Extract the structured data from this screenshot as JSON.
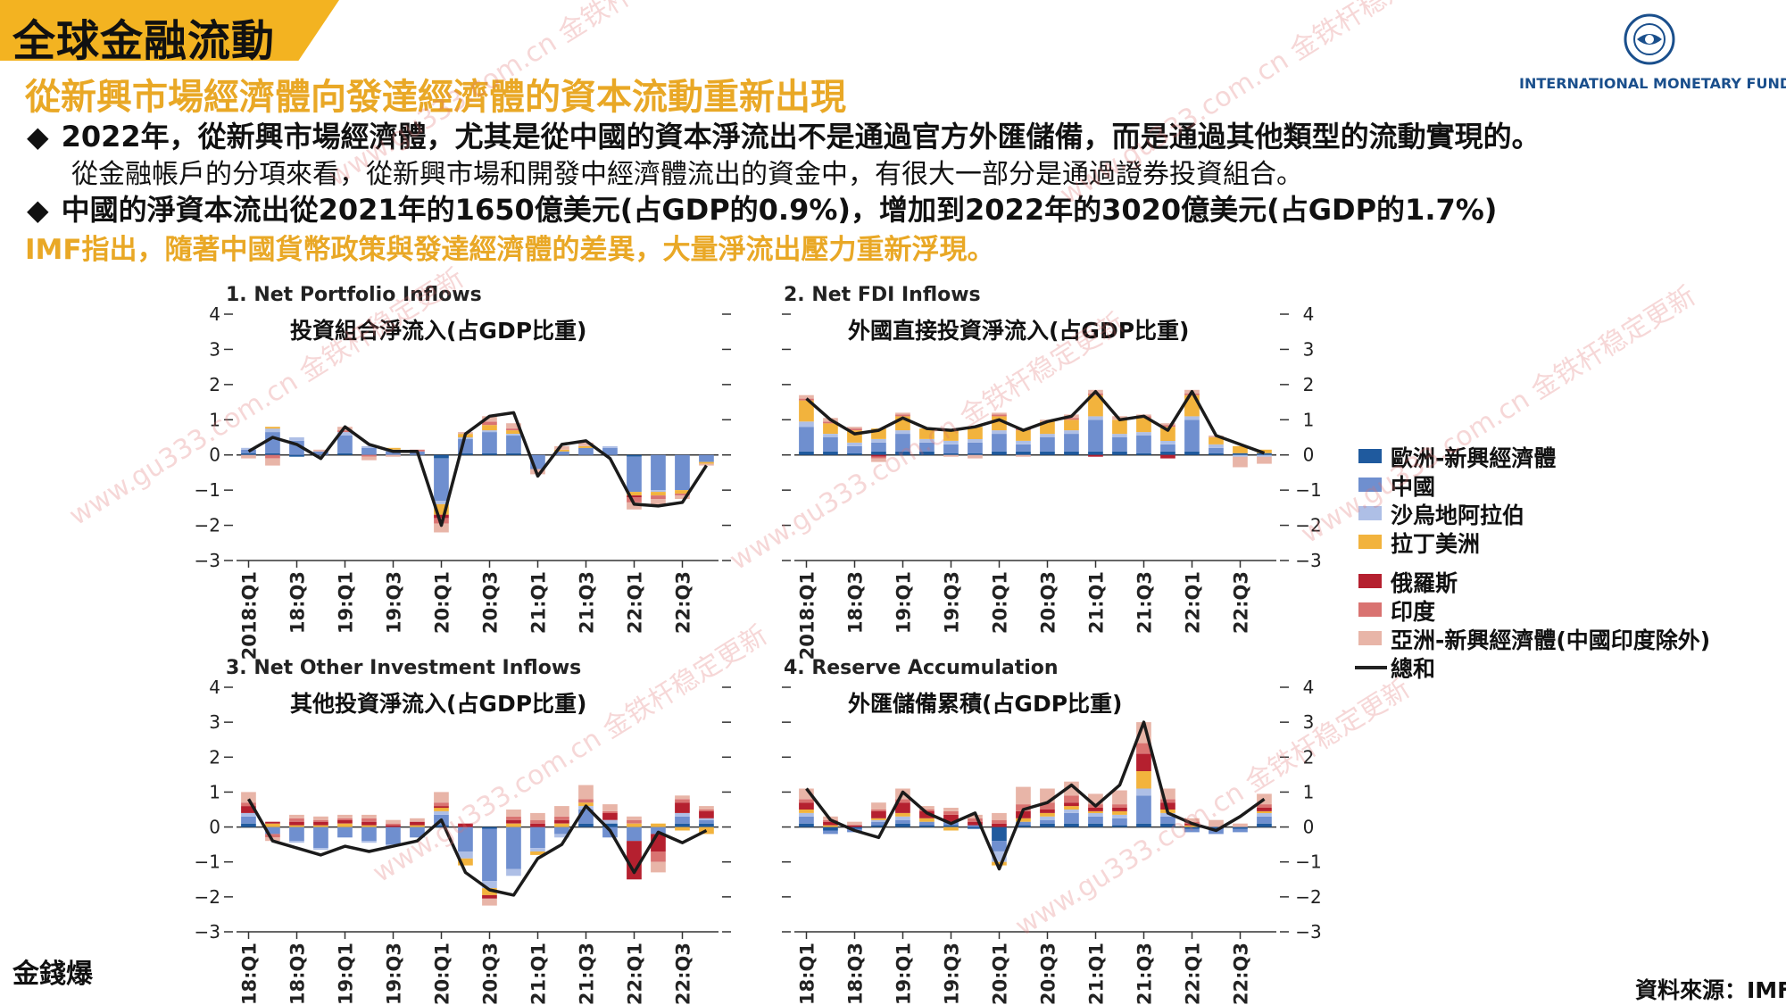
{
  "header": {
    "title": "全球金融流動",
    "subtitle": "從新興市場經濟體向發達經濟體的資本流動重新出現",
    "imf_name": "INTERNATIONAL MONETARY FUND"
  },
  "bullets": {
    "b1": "2022年，從新興市場經濟體，尤其是從中國的資本淨流出不是通過官方外匯儲備，而是通過其他類型的流動實現的。",
    "b1_sub": "從金融帳戶的分項來看，從新興市場和開發中經濟體流出的資金中，有很大一部分是通過證券投資組合。",
    "b2": "中國的淨資本流出從2021年的1650億美元(占GDP的0.9%)，增加到2022年的3020億美元(占GDP的1.7%)",
    "b3": "IMF指出，隨著中國貨幣政策與發達經濟體的差異，大量淨流出壓力重新浮現。",
    "marker": "◆"
  },
  "source": "資料來源：IMF",
  "corner_logo": "金錢爆",
  "watermark_text": "www.gu333.com.cn 金铁杆稳定更新",
  "legend": {
    "items": [
      {
        "label": "歐洲-新興經濟體",
        "color": "#1f5a9e"
      },
      {
        "label": "中國",
        "color": "#6f8fcf"
      },
      {
        "label": "沙烏地阿拉伯",
        "color": "#aebfe6"
      },
      {
        "label": "拉丁美洲",
        "color": "#f2b33d"
      },
      {
        "label": "俄羅斯",
        "color": "#b5202f"
      },
      {
        "label": "印度",
        "color": "#d97371"
      },
      {
        "label": "亞洲-新興經濟體(中國印度除外)",
        "color": "#e8b5a8"
      }
    ],
    "total_label": "總和"
  },
  "chart_data": [
    {
      "type": "bar",
      "stacked": true,
      "title": "1. Net Portfolio Inflows",
      "subtitle_zh": "投資組合淨流入(占GDP比重)",
      "ylim": [
        -3,
        4
      ],
      "yticks": [
        "4",
        "3",
        "2",
        "1",
        "0",
        "−1",
        "−2",
        "−3"
      ],
      "tick_labels": [
        "2018:Q1",
        "18:Q3",
        "19:Q1",
        "19:Q3",
        "20:Q1",
        "20:Q3",
        "21:Q1",
        "21:Q3",
        "22:Q1",
        "22:Q3"
      ],
      "categories": [
        "2018Q1",
        "2018Q2",
        "2018Q3",
        "2018Q4",
        "2019Q1",
        "2019Q2",
        "2019Q3",
        "2019Q4",
        "2020Q1",
        "2020Q2",
        "2020Q3",
        "2020Q4",
        "2021Q1",
        "2021Q2",
        "2021Q3",
        "2021Q4",
        "2022Q1",
        "2022Q2",
        "2022Q3",
        "2022Q4"
      ],
      "series": [
        {
          "name": "歐洲-新興經濟體",
          "values": [
            0.05,
            0.05,
            -0.05,
            0,
            0.05,
            0,
            0,
            0,
            -0.1,
            0.05,
            0.05,
            0.05,
            0,
            0,
            0,
            0,
            -0.05,
            0,
            0,
            0
          ]
        },
        {
          "name": "中國",
          "values": [
            0.1,
            0.6,
            0.4,
            0.1,
            0.5,
            0.2,
            0.1,
            0.1,
            -1.2,
            0.4,
            0.6,
            0.5,
            -0.4,
            0.1,
            0.2,
            0.2,
            -1,
            -1,
            -1,
            -0.2
          ]
        },
        {
          "name": "沙烏地阿拉伯",
          "values": [
            0.05,
            0.1,
            0.1,
            0,
            0.1,
            0.05,
            0.05,
            0,
            -0.1,
            0.05,
            0.05,
            0.05,
            0,
            0,
            0,
            0.05,
            0,
            -0.05,
            0,
            0
          ]
        },
        {
          "name": "拉丁美洲",
          "values": [
            0,
            0.05,
            0,
            0,
            0,
            0,
            0.05,
            0,
            -0.3,
            0.1,
            0.15,
            0.1,
            0,
            0.05,
            0.05,
            0,
            -0.1,
            -0.1,
            -0.1,
            -0.05
          ]
        },
        {
          "name": "俄羅斯",
          "values": [
            0,
            0,
            0,
            0,
            0,
            0,
            0,
            0,
            -0.1,
            0,
            0,
            0,
            0,
            0,
            0,
            0,
            -0.05,
            0,
            0,
            0
          ]
        },
        {
          "name": "印度",
          "values": [
            0,
            -0.1,
            0,
            0,
            0.05,
            -0.05,
            0,
            0.05,
            -0.15,
            0,
            0.1,
            0.05,
            0,
            0,
            0,
            0,
            -0.15,
            -0.1,
            -0.05,
            0
          ]
        },
        {
          "name": "亞洲-新興經濟體(中國印度除外)",
          "values": [
            -0.1,
            -0.2,
            0,
            0.05,
            0.1,
            -0.1,
            -0.05,
            0,
            -0.25,
            0.05,
            0.15,
            0.15,
            -0.15,
            0.1,
            0.1,
            0,
            -0.2,
            -0.2,
            -0.1,
            -0.05
          ]
        }
      ],
      "total": [
        0.1,
        0.5,
        0.3,
        -0.1,
        0.8,
        0.3,
        0.1,
        0.1,
        -2,
        0.6,
        1.1,
        1.2,
        -0.6,
        0.3,
        0.4,
        -0.1,
        -1.4,
        -1.45,
        -1.35,
        -0.3
      ]
    },
    {
      "type": "bar",
      "stacked": true,
      "title": "2. Net FDI Inflows",
      "subtitle_zh": "外國直接投資淨流入(占GDP比重)",
      "ylim": [
        -3,
        4
      ],
      "yticks": [
        "4",
        "3",
        "2",
        "1",
        "0",
        "−1",
        "−2",
        "−3"
      ],
      "tick_labels": [
        "2018:Q1",
        "18:Q3",
        "19:Q1",
        "19:Q3",
        "20:Q1",
        "20:Q3",
        "21:Q1",
        "21:Q3",
        "22:Q1",
        "22:Q3"
      ],
      "categories": [
        "2018Q1",
        "2018Q2",
        "2018Q3",
        "2018Q4",
        "2019Q1",
        "2019Q2",
        "2019Q3",
        "2019Q4",
        "2020Q1",
        "2020Q2",
        "2020Q3",
        "2020Q4",
        "2021Q1",
        "2021Q2",
        "2021Q3",
        "2021Q4",
        "2022Q1",
        "2022Q2",
        "2022Q3",
        "2022Q4"
      ],
      "series": [
        {
          "name": "歐洲-新興經濟體",
          "values": [
            0.1,
            0.1,
            0.05,
            0.1,
            0.1,
            0.1,
            0.05,
            0.05,
            0.1,
            0.1,
            0.1,
            0.1,
            0.1,
            0.1,
            0.05,
            0.1,
            0.1,
            0.05,
            0.05,
            0.05
          ]
        },
        {
          "name": "中國",
          "values": [
            0.7,
            0.4,
            0.2,
            0.25,
            0.5,
            0.25,
            0.25,
            0.3,
            0.5,
            0.2,
            0.4,
            0.5,
            0.9,
            0.4,
            0.5,
            0.2,
            0.9,
            0.15,
            0,
            0
          ]
        },
        {
          "name": "沙烏地阿拉伯",
          "values": [
            0.15,
            0.1,
            0.1,
            0.1,
            0.1,
            0.1,
            0.1,
            0.1,
            0.1,
            0.1,
            0.1,
            0.1,
            0.1,
            0.1,
            0.1,
            0.1,
            0.1,
            0.1,
            -0.05,
            -0.05
          ]
        },
        {
          "name": "拉丁美洲",
          "values": [
            0.6,
            0.3,
            0.35,
            0.3,
            0.4,
            0.3,
            0.3,
            0.35,
            0.4,
            0.3,
            0.35,
            0.3,
            0.6,
            0.4,
            0.4,
            0.4,
            0.6,
            0.2,
            0.2,
            0.1
          ]
        },
        {
          "name": "俄羅斯",
          "values": [
            0,
            0,
            0,
            -0.05,
            0,
            0,
            0,
            0,
            0,
            0,
            0,
            0,
            -0.05,
            0,
            0,
            -0.1,
            0,
            0,
            0,
            0
          ]
        },
        {
          "name": "印度",
          "values": [
            0.05,
            0.05,
            0.05,
            -0.05,
            0.05,
            0,
            0,
            0,
            0.05,
            0.05,
            0,
            0.05,
            0.05,
            0,
            0.05,
            0.05,
            0.05,
            0,
            0,
            0
          ]
        },
        {
          "name": "亞洲-新興經濟體(中國印度除外)",
          "values": [
            0.1,
            0.1,
            0.05,
            -0.1,
            0.05,
            0,
            -0.05,
            -0.1,
            0.05,
            -0.05,
            0.05,
            0.1,
            0.1,
            0.1,
            0.05,
            0.05,
            0.1,
            0.05,
            -0.3,
            -0.2
          ]
        }
      ],
      "total": [
        1.6,
        1,
        0.6,
        0.7,
        1.05,
        0.75,
        0.7,
        0.8,
        1,
        0.7,
        0.95,
        1.1,
        1.8,
        1,
        1.1,
        0.7,
        1.8,
        0.55,
        0.3,
        0.05
      ]
    },
    {
      "type": "bar",
      "stacked": true,
      "title": "3. Net Other Investment Inflows",
      "subtitle_zh": "其他投資淨流入(占GDP比重)",
      "ylim": [
        -3,
        4
      ],
      "yticks": [
        "4",
        "3",
        "2",
        "1",
        "0",
        "−1",
        "−2",
        "−3"
      ],
      "tick_labels": [
        "2018:Q1",
        "18:Q3",
        "19:Q1",
        "19:Q3",
        "20:Q1",
        "20:Q3",
        "21:Q1",
        "21:Q3",
        "22:Q1",
        "22:Q3"
      ],
      "categories": [
        "2018Q1",
        "2018Q2",
        "2018Q3",
        "2018Q4",
        "2019Q1",
        "2019Q2",
        "2019Q3",
        "2019Q4",
        "2020Q1",
        "2020Q2",
        "2020Q3",
        "2020Q4",
        "2021Q1",
        "2021Q2",
        "2021Q3",
        "2021Q4",
        "2022Q1",
        "2022Q2",
        "2022Q3",
        "2022Q4"
      ],
      "series": [
        {
          "name": "歐洲-新興經濟體",
          "values": [
            0.1,
            0,
            0,
            0,
            0,
            0,
            0,
            0,
            0.05,
            0,
            -0.05,
            0,
            0,
            0,
            0.1,
            0.1,
            0,
            0,
            0.1,
            0.1
          ]
        },
        {
          "name": "中國",
          "values": [
            0.2,
            -0.2,
            -0.4,
            -0.6,
            -0.3,
            -0.4,
            -0.5,
            -0.3,
            0.3,
            -0.7,
            -1.5,
            -1.2,
            -0.6,
            -0.2,
            0.4,
            -0.3,
            -0.4,
            -0.2,
            0.2,
            0.1
          ]
        },
        {
          "name": "沙烏地阿拉伯",
          "values": [
            0.1,
            0,
            -0.05,
            -0.05,
            0,
            -0.05,
            -0.05,
            0,
            0.1,
            -0.2,
            -0.2,
            -0.2,
            -0.1,
            -0.1,
            0.1,
            0.1,
            0,
            0,
            0.1,
            0.05
          ]
        },
        {
          "name": "拉丁美洲",
          "values": [
            0,
            0.1,
            0.05,
            0.05,
            0.1,
            0.05,
            0,
            0.05,
            0.1,
            -0.2,
            -0.2,
            0.1,
            -0.1,
            0.1,
            0.1,
            0,
            0.1,
            0.1,
            -0.1,
            -0.2
          ]
        },
        {
          "name": "俄羅斯",
          "values": [
            0.2,
            0.05,
            0.1,
            0.1,
            0.1,
            0.1,
            0.05,
            0.1,
            0.05,
            0.1,
            -0.1,
            0.1,
            0.1,
            0.1,
            0,
            0.2,
            -1.1,
            -0.5,
            0.3,
            0.2
          ]
        },
        {
          "name": "印度",
          "values": [
            0.1,
            -0.1,
            0.1,
            0.05,
            0.05,
            0.1,
            0.05,
            0,
            0.1,
            0,
            0,
            0.1,
            0.1,
            0.1,
            0.1,
            0.05,
            0.1,
            -0.3,
            0.1,
            0.05
          ]
        },
        {
          "name": "亞洲-新興經濟體(中國印度除外)",
          "values": [
            0.3,
            -0.1,
            0.1,
            0.1,
            0.1,
            0.1,
            0.1,
            0.1,
            0.3,
            0,
            -0.2,
            0.2,
            0.2,
            0.3,
            0.4,
            0.2,
            0.1,
            -0.3,
            0.1,
            0.1
          ]
        }
      ],
      "total": [
        0.8,
        -0.4,
        -0.6,
        -0.8,
        -0.55,
        -0.7,
        -0.55,
        -0.4,
        0.2,
        -1.3,
        -1.8,
        -1.95,
        -0.9,
        -0.5,
        0.6,
        -0.1,
        -1.3,
        -0.15,
        -0.45,
        -0.1
      ]
    },
    {
      "type": "bar",
      "stacked": true,
      "title": "4. Reserve Accumulation",
      "subtitle_zh": "外匯儲備累積(占GDP比重)",
      "ylim": [
        -3,
        4
      ],
      "yticks": [
        "4",
        "3",
        "2",
        "1",
        "0",
        "−1",
        "−2",
        "−3"
      ],
      "tick_labels": [
        "2018:Q1",
        "18:Q3",
        "19:Q1",
        "19:Q3",
        "20:Q1",
        "20:Q3",
        "21:Q1",
        "21:Q3",
        "22:Q1",
        "22:Q3"
      ],
      "categories": [
        "2018Q1",
        "2018Q2",
        "2018Q3",
        "2018Q4",
        "2019Q1",
        "2019Q2",
        "2019Q3",
        "2019Q4",
        "2020Q1",
        "2020Q2",
        "2020Q3",
        "2020Q4",
        "2021Q1",
        "2021Q2",
        "2021Q3",
        "2021Q4",
        "2022Q1",
        "2022Q2",
        "2022Q3",
        "2022Q4"
      ],
      "series": [
        {
          "name": "歐洲-新興經濟體",
          "values": [
            0.1,
            -0.1,
            -0.05,
            0.05,
            0.1,
            0.05,
            0.05,
            -0.05,
            -0.4,
            0.05,
            0.1,
            0.1,
            0.1,
            0.05,
            0.1,
            0.1,
            -0.05,
            -0.05,
            -0.05,
            0.1
          ]
        },
        {
          "name": "中國",
          "values": [
            0.2,
            -0.1,
            -0.1,
            0.1,
            0.1,
            0.1,
            0.1,
            0.05,
            -0.3,
            0.1,
            0.1,
            0.3,
            0.2,
            0.2,
            0.8,
            0.2,
            -0.1,
            -0.15,
            -0.1,
            0.2
          ]
        },
        {
          "name": "沙烏地阿拉伯",
          "values": [
            0.1,
            0,
            0,
            0.05,
            0.1,
            0,
            0,
            0,
            -0.3,
            0,
            0.1,
            0.1,
            0.1,
            0.1,
            0.2,
            0.1,
            0,
            0,
            0,
            0.1
          ]
        },
        {
          "name": "拉丁美洲",
          "values": [
            0.1,
            0.05,
            0,
            0.05,
            0.1,
            0.1,
            -0.1,
            0,
            -0.1,
            0.1,
            0.1,
            0.1,
            0.05,
            0.1,
            0.5,
            0.1,
            0.05,
            0,
            0,
            0.05
          ]
        },
        {
          "name": "俄羅斯",
          "values": [
            0.2,
            0.1,
            0.05,
            0.2,
            0.3,
            0.2,
            0.2,
            0.1,
            0.1,
            0.2,
            0.1,
            0.1,
            0.1,
            0.1,
            0.5,
            0.2,
            0.05,
            0,
            0,
            0.1
          ]
        },
        {
          "name": "印度",
          "values": [
            0.1,
            0.05,
            0,
            0.05,
            0.1,
            0.05,
            0.1,
            0.1,
            0.1,
            0.2,
            0.2,
            0.2,
            0.1,
            0.1,
            0.3,
            0.1,
            0.05,
            0,
            0,
            0.1
          ]
        },
        {
          "name": "亞洲-新興經濟體(中國印度除外)",
          "values": [
            0.3,
            0.1,
            0.1,
            0.2,
            0.3,
            0.1,
            0.1,
            0.1,
            0.2,
            0.5,
            0.4,
            0.4,
            0.3,
            0.4,
            0.6,
            0.3,
            0.1,
            0.2,
            0.1,
            0.3
          ]
        }
      ],
      "total": [
        1.1,
        0.2,
        -0.1,
        -0.3,
        1,
        0.4,
        0.1,
        0.4,
        -1.2,
        0.5,
        0.7,
        1.2,
        0.6,
        1.2,
        3,
        0.4,
        0.1,
        -0.1,
        0.3,
        0.8
      ]
    }
  ]
}
